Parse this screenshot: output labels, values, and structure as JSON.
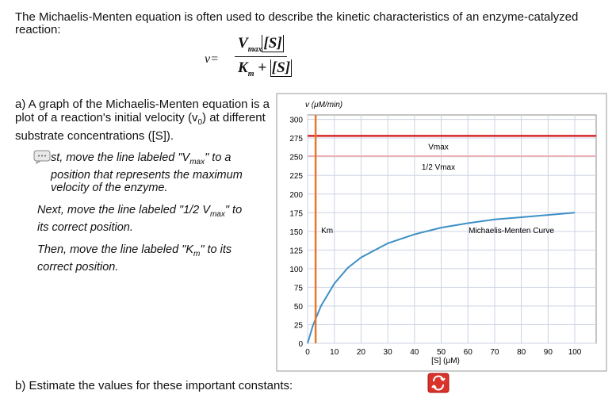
{
  "intro": "The Michaelis-Menten equation is often used to describe the kinetic characteristics of an enzyme-catalyzed reaction:",
  "equation": {
    "lhs": "v=",
    "num_v": "V",
    "num_sub": "max",
    "num_s": "[S]",
    "den_k": "K",
    "den_sub": "m",
    "den_plus": "+",
    "den_s": "[S]"
  },
  "part_a": [
    "a) A graph of the Michaelis-Menten equation is a plot of a reaction's initial velocity (v",
    "0",
    ") at different substrate concentrations ([S])."
  ],
  "steps": [
    [
      "st, move the line labeled \"V",
      "max",
      "\" to a position that represents the maximum velocity of the enzyme."
    ],
    [
      "Next, move the line labeled \"1/2 V",
      "max",
      "\" to its correct position."
    ],
    [
      "Then, move the line labeled \"K",
      "m",
      "\" to its correct position."
    ]
  ],
  "part_b": "b) Estimate the values for these important constants:",
  "graph": {
    "type": "line",
    "y_label": "v (μM/min)",
    "x_label": "[S] (μM)",
    "xlim": [
      0,
      108
    ],
    "ylim": [
      0,
      306
    ],
    "xticks": [
      0,
      10,
      20,
      30,
      40,
      50,
      60,
      70,
      80,
      90,
      100
    ],
    "yticks": [
      0,
      25,
      50,
      75,
      100,
      125,
      150,
      175,
      200,
      225,
      250,
      275,
      300
    ],
    "grid": true,
    "curve": {
      "name": "Michaelis-Menten Curve",
      "color": "#3d8fc6",
      "x": [
        0,
        2,
        5,
        10,
        15,
        20,
        30,
        40,
        50,
        60,
        70,
        80,
        90,
        100
      ],
      "values": [
        0,
        24,
        50,
        80,
        101,
        115,
        134,
        146,
        155,
        161,
        166,
        169,
        172,
        175
      ]
    },
    "lines": [
      {
        "name": "Vmax",
        "axis": "y",
        "value": 278,
        "color": "#d62728"
      },
      {
        "name": "1/2 Vmax",
        "axis": "y",
        "value": 251,
        "color": "#f4a0a0"
      },
      {
        "name": "Km",
        "axis": "x",
        "value": 3,
        "color": "#e8792a"
      }
    ]
  }
}
